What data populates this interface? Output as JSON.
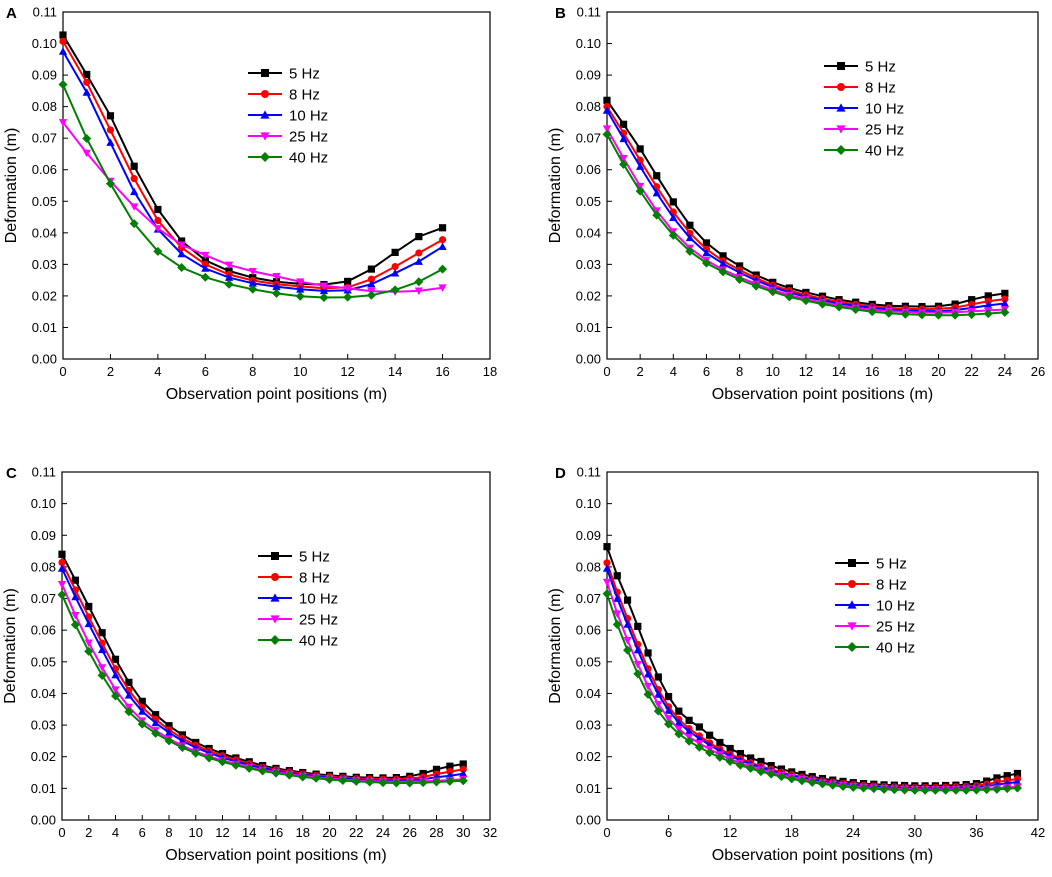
{
  "figure": {
    "kind": "four-panel line chart"
  },
  "colors": {
    "5 Hz": "#000000",
    "8 Hz": "#ff0000",
    "10 Hz": "#0000ff",
    "25 Hz": "#ff00ff",
    "40 Hz": "#008000"
  },
  "markers": {
    "5 Hz": "square",
    "8 Hz": "circle",
    "10 Hz": "triangle-up",
    "25 Hz": "triangle-down",
    "40 Hz": "diamond"
  },
  "chart_data": [
    {
      "panel": "A",
      "type": "line",
      "xlabel": "Observation point positions (m)",
      "ylabel": "Deformation (m)",
      "xlim": [
        0,
        18
      ],
      "ylim": [
        0,
        0.11
      ],
      "xticks": [
        0,
        2,
        4,
        6,
        8,
        10,
        12,
        14,
        16,
        18
      ],
      "yticks": [
        0.0,
        0.01,
        0.02,
        0.03,
        0.04,
        0.05,
        0.06,
        0.07,
        0.08,
        0.09,
        0.1,
        0.11
      ],
      "legend": "upper-center",
      "x": [
        0,
        1,
        2,
        3,
        4,
        5,
        6,
        7,
        8,
        9,
        10,
        11,
        12,
        13,
        14,
        15,
        16
      ],
      "series": [
        {
          "name": "5 Hz",
          "values": [
            0.1027,
            0.0902,
            0.0771,
            0.0611,
            0.0474,
            0.0374,
            0.0313,
            0.0279,
            0.0258,
            0.0245,
            0.0238,
            0.0236,
            0.0246,
            0.0285,
            0.0338,
            0.0388,
            0.0416
          ]
        },
        {
          "name": "8 Hz",
          "values": [
            0.1007,
            0.0877,
            0.0726,
            0.0572,
            0.0439,
            0.0353,
            0.03,
            0.0268,
            0.0249,
            0.0237,
            0.023,
            0.0224,
            0.0227,
            0.0253,
            0.0293,
            0.0336,
            0.0378
          ]
        },
        {
          "name": "10 Hz",
          "values": [
            0.0975,
            0.0845,
            0.0686,
            0.053,
            0.0411,
            0.0333,
            0.0287,
            0.0258,
            0.024,
            0.0229,
            0.0221,
            0.0216,
            0.0218,
            0.0237,
            0.0272,
            0.0309,
            0.0356
          ]
        },
        {
          "name": "25 Hz",
          "values": [
            0.075,
            0.0653,
            0.0564,
            0.0483,
            0.0414,
            0.0362,
            0.0329,
            0.0298,
            0.0278,
            0.0262,
            0.0245,
            0.0232,
            0.0224,
            0.0215,
            0.0213,
            0.0216,
            0.0226
          ]
        },
        {
          "name": "40 Hz",
          "values": [
            0.087,
            0.0699,
            0.0556,
            0.0429,
            0.0341,
            0.029,
            0.0259,
            0.0237,
            0.0221,
            0.0208,
            0.0199,
            0.0195,
            0.0196,
            0.0202,
            0.0219,
            0.0245,
            0.0285
          ]
        }
      ]
    },
    {
      "panel": "B",
      "type": "line",
      "xlabel": "Observation point positions (m)",
      "ylabel": "Deformation (m)",
      "xlim": [
        0,
        26
      ],
      "ylim": [
        0,
        0.11
      ],
      "xticks": [
        0,
        2,
        4,
        6,
        8,
        10,
        12,
        14,
        16,
        18,
        20,
        22,
        24,
        26
      ],
      "yticks": [
        0.0,
        0.01,
        0.02,
        0.03,
        0.04,
        0.05,
        0.06,
        0.07,
        0.08,
        0.09,
        0.1,
        0.11
      ],
      "legend": "upper-left",
      "x": [
        0,
        1,
        2,
        3,
        4,
        5,
        6,
        7,
        8,
        9,
        10,
        11,
        12,
        13,
        14,
        15,
        16,
        17,
        18,
        19,
        20,
        21,
        22,
        23,
        24
      ],
      "series": [
        {
          "name": "5 Hz",
          "values": [
            0.082,
            0.0744,
            0.0666,
            0.0581,
            0.0498,
            0.0424,
            0.0368,
            0.0327,
            0.0295,
            0.0266,
            0.0243,
            0.0225,
            0.0211,
            0.0199,
            0.0188,
            0.018,
            0.0173,
            0.0169,
            0.0167,
            0.0166,
            0.0167,
            0.0174,
            0.0188,
            0.02,
            0.0208
          ]
        },
        {
          "name": "8 Hz",
          "values": [
            0.08,
            0.0716,
            0.063,
            0.0546,
            0.0466,
            0.0399,
            0.0348,
            0.0311,
            0.0282,
            0.0256,
            0.0234,
            0.0217,
            0.0203,
            0.0191,
            0.0181,
            0.0173,
            0.0166,
            0.0162,
            0.0159,
            0.0158,
            0.0159,
            0.0163,
            0.0173,
            0.0183,
            0.019
          ]
        },
        {
          "name": "10 Hz",
          "values": [
            0.0788,
            0.0698,
            0.061,
            0.0526,
            0.0448,
            0.0384,
            0.0336,
            0.0302,
            0.0274,
            0.0249,
            0.0228,
            0.0211,
            0.0197,
            0.0186,
            0.0176,
            0.0168,
            0.0162,
            0.0157,
            0.0154,
            0.0152,
            0.0152,
            0.0155,
            0.0162,
            0.017,
            0.0176
          ]
        },
        {
          "name": "25 Hz",
          "values": [
            0.073,
            0.0636,
            0.0548,
            0.047,
            0.0404,
            0.0352,
            0.0313,
            0.0283,
            0.0259,
            0.0238,
            0.0219,
            0.0203,
            0.019,
            0.0179,
            0.017,
            0.0162,
            0.0156,
            0.0152,
            0.0149,
            0.0147,
            0.0147,
            0.0148,
            0.0151,
            0.0154,
            0.0157
          ]
        },
        {
          "name": "40 Hz",
          "values": [
            0.0712,
            0.0617,
            0.0532,
            0.0456,
            0.0392,
            0.0341,
            0.0304,
            0.0276,
            0.0252,
            0.0231,
            0.0213,
            0.0197,
            0.0185,
            0.0174,
            0.0165,
            0.0157,
            0.015,
            0.0145,
            0.0142,
            0.014,
            0.0139,
            0.0139,
            0.0141,
            0.0144,
            0.0148
          ]
        }
      ]
    },
    {
      "panel": "C",
      "type": "line",
      "xlabel": "Observation point positions (m)",
      "ylabel": "Deformation (m)",
      "xlim": [
        0,
        32
      ],
      "ylim": [
        0,
        0.11
      ],
      "xticks": [
        0,
        2,
        4,
        6,
        8,
        10,
        12,
        14,
        16,
        18,
        20,
        22,
        24,
        26,
        28,
        30,
        32
      ],
      "yticks": [
        0.0,
        0.01,
        0.02,
        0.03,
        0.04,
        0.05,
        0.06,
        0.07,
        0.08,
        0.09,
        0.1,
        0.11
      ],
      "legend": "upper-center",
      "x": [
        0,
        1,
        2,
        3,
        4,
        5,
        6,
        7,
        8,
        9,
        10,
        11,
        12,
        13,
        14,
        15,
        16,
        17,
        18,
        19,
        20,
        21,
        22,
        23,
        24,
        25,
        26,
        27,
        28,
        29,
        30
      ],
      "series": [
        {
          "name": "5 Hz",
          "values": [
            0.084,
            0.0758,
            0.0675,
            0.0592,
            0.0508,
            0.0435,
            0.0375,
            0.0333,
            0.0298,
            0.0269,
            0.0245,
            0.0226,
            0.021,
            0.0196,
            0.0184,
            0.0172,
            0.0163,
            0.0156,
            0.015,
            0.0145,
            0.0141,
            0.0138,
            0.0135,
            0.0134,
            0.0133,
            0.0134,
            0.0138,
            0.0147,
            0.016,
            0.017,
            0.0177
          ]
        },
        {
          "name": "8 Hz",
          "values": [
            0.0814,
            0.0727,
            0.0642,
            0.0559,
            0.0478,
            0.041,
            0.0356,
            0.0318,
            0.0285,
            0.0258,
            0.0236,
            0.0218,
            0.0203,
            0.019,
            0.0178,
            0.0167,
            0.0159,
            0.0152,
            0.0146,
            0.0141,
            0.0137,
            0.0134,
            0.0131,
            0.013,
            0.0129,
            0.0129,
            0.0131,
            0.0136,
            0.0145,
            0.0153,
            0.016
          ]
        },
        {
          "name": "10 Hz",
          "values": [
            0.0795,
            0.0705,
            0.062,
            0.0538,
            0.0458,
            0.0394,
            0.0343,
            0.0307,
            0.0276,
            0.025,
            0.0229,
            0.0212,
            0.0197,
            0.0185,
            0.0174,
            0.0164,
            0.0156,
            0.0149,
            0.0143,
            0.0138,
            0.0134,
            0.0131,
            0.0128,
            0.0126,
            0.0125,
            0.0125,
            0.0126,
            0.0129,
            0.0135,
            0.014,
            0.0146
          ]
        },
        {
          "name": "25 Hz",
          "values": [
            0.0745,
            0.0647,
            0.056,
            0.0482,
            0.0412,
            0.0357,
            0.0314,
            0.0283,
            0.0257,
            0.0235,
            0.0216,
            0.0201,
            0.0188,
            0.0177,
            0.0167,
            0.0158,
            0.0151,
            0.0145,
            0.0139,
            0.0135,
            0.0131,
            0.0128,
            0.0125,
            0.0123,
            0.0122,
            0.0121,
            0.0121,
            0.0122,
            0.0124,
            0.0126,
            0.0129
          ]
        },
        {
          "name": "40 Hz",
          "values": [
            0.0712,
            0.0617,
            0.0533,
            0.0457,
            0.0392,
            0.0342,
            0.0303,
            0.0274,
            0.025,
            0.0229,
            0.0211,
            0.0196,
            0.0184,
            0.0173,
            0.0163,
            0.0155,
            0.0148,
            0.0142,
            0.0136,
            0.0132,
            0.0128,
            0.0125,
            0.0122,
            0.012,
            0.0118,
            0.0117,
            0.0117,
            0.0118,
            0.012,
            0.0122,
            0.0124
          ]
        }
      ]
    },
    {
      "panel": "D",
      "type": "line",
      "xlabel": "Observation point positions (m)",
      "ylabel": "Deformation (m)",
      "xlim": [
        0,
        42
      ],
      "ylim": [
        0,
        0.11
      ],
      "xticks": [
        0,
        6,
        12,
        18,
        24,
        30,
        36,
        42
      ],
      "yticks": [
        0.0,
        0.01,
        0.02,
        0.03,
        0.04,
        0.05,
        0.06,
        0.07,
        0.08,
        0.09,
        0.1,
        0.11
      ],
      "legend": "upper-center",
      "x": [
        0,
        1,
        2,
        3,
        4,
        5,
        6,
        7,
        8,
        9,
        10,
        11,
        12,
        13,
        14,
        15,
        16,
        17,
        18,
        19,
        20,
        21,
        22,
        23,
        24,
        25,
        26,
        27,
        28,
        29,
        30,
        31,
        32,
        33,
        34,
        35,
        36,
        37,
        38,
        39,
        40
      ],
      "series": [
        {
          "name": "5 Hz",
          "values": [
            0.0864,
            0.0772,
            0.0695,
            0.0612,
            0.0528,
            0.0452,
            0.039,
            0.0344,
            0.0315,
            0.0294,
            0.0268,
            0.0245,
            0.0226,
            0.021,
            0.0196,
            0.0185,
            0.0172,
            0.0161,
            0.0152,
            0.0144,
            0.0137,
            0.0131,
            0.0126,
            0.0122,
            0.0118,
            0.0115,
            0.0113,
            0.0111,
            0.011,
            0.0109,
            0.0108,
            0.0108,
            0.0108,
            0.0109,
            0.011,
            0.0112,
            0.0115,
            0.0123,
            0.0133,
            0.014,
            0.0147
          ]
        },
        {
          "name": "8 Hz",
          "values": [
            0.0813,
            0.072,
            0.0637,
            0.0555,
            0.0478,
            0.0412,
            0.0358,
            0.0318,
            0.0289,
            0.0266,
            0.0244,
            0.0224,
            0.0208,
            0.0194,
            0.0181,
            0.017,
            0.016,
            0.0151,
            0.0143,
            0.0136,
            0.013,
            0.0124,
            0.012,
            0.0116,
            0.0113,
            0.011,
            0.0108,
            0.0106,
            0.0105,
            0.0104,
            0.0103,
            0.0103,
            0.0103,
            0.0104,
            0.0105,
            0.0106,
            0.0108,
            0.0113,
            0.012,
            0.0125,
            0.013
          ]
        },
        {
          "name": "10 Hz",
          "values": [
            0.0795,
            0.07,
            0.0618,
            0.0537,
            0.0461,
            0.0397,
            0.0346,
            0.0308,
            0.028,
            0.0258,
            0.0237,
            0.0218,
            0.0203,
            0.0189,
            0.0177,
            0.0166,
            0.0156,
            0.0148,
            0.014,
            0.0134,
            0.0128,
            0.0122,
            0.0118,
            0.0114,
            0.0111,
            0.0108,
            0.0106,
            0.0104,
            0.0103,
            0.0102,
            0.0101,
            0.0101,
            0.0101,
            0.0101,
            0.0102,
            0.0103,
            0.0104,
            0.0107,
            0.0112,
            0.0116,
            0.012
          ]
        },
        {
          "name": "25 Hz",
          "values": [
            0.0752,
            0.0652,
            0.0568,
            0.0492,
            0.0423,
            0.0366,
            0.0321,
            0.0287,
            0.0262,
            0.0242,
            0.0224,
            0.0207,
            0.0193,
            0.018,
            0.0169,
            0.0159,
            0.015,
            0.0142,
            0.0135,
            0.0129,
            0.0123,
            0.0118,
            0.0114,
            0.011,
            0.0107,
            0.0104,
            0.0102,
            0.01,
            0.0099,
            0.0098,
            0.0097,
            0.0097,
            0.0097,
            0.0097,
            0.0097,
            0.0098,
            0.0098,
            0.0099,
            0.0101,
            0.0103,
            0.0105
          ]
        },
        {
          "name": "40 Hz",
          "values": [
            0.0715,
            0.0618,
            0.0537,
            0.0462,
            0.0397,
            0.0344,
            0.0303,
            0.0272,
            0.0249,
            0.023,
            0.0213,
            0.0198,
            0.0185,
            0.0173,
            0.0163,
            0.0153,
            0.0145,
            0.0137,
            0.013,
            0.0124,
            0.0119,
            0.0114,
            0.011,
            0.0106,
            0.0103,
            0.0101,
            0.0099,
            0.0097,
            0.0096,
            0.0095,
            0.0094,
            0.0094,
            0.0094,
            0.0094,
            0.0094,
            0.0094,
            0.0095,
            0.0096,
            0.0097,
            0.0099,
            0.0101
          ]
        }
      ]
    }
  ]
}
